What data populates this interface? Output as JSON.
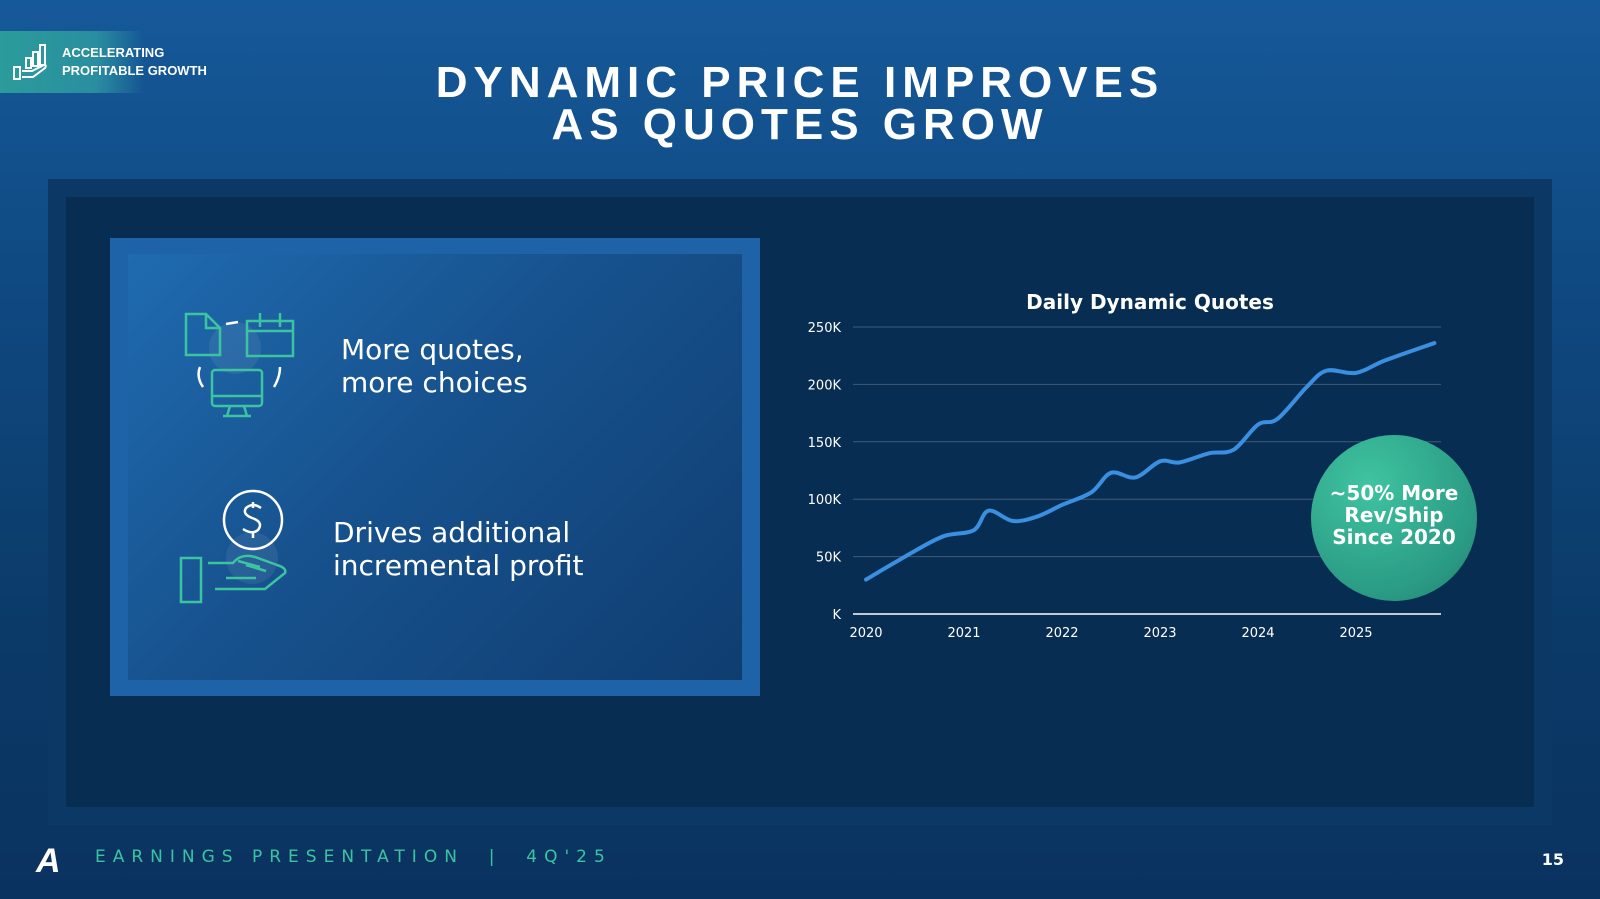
{
  "badge": {
    "line1": "ACCELERATING",
    "line2": "PROFITABLE GROWTH",
    "icon": "growth-hand-icon"
  },
  "title": {
    "line1": "DYNAMIC PRICE IMPROVES",
    "line2": "AS QUOTES GROW"
  },
  "items": [
    {
      "icon": "quotes-devices-icon",
      "line1": "More quotes,",
      "line2": "more choices"
    },
    {
      "icon": "money-hand-icon",
      "line1": "Drives additional",
      "line2": "incremental profit"
    }
  ],
  "callout": {
    "line1": "~50% More",
    "line2": "Rev/Ship",
    "line3": "Since 2020"
  },
  "footer": {
    "text": "EARNINGS PRESENTATION  |  4Q'25",
    "logo": "A",
    "page": "15"
  },
  "colors": {
    "line": "#3a8fe0",
    "accent": "#3cc4a0"
  },
  "chart_data": {
    "type": "line",
    "title": "Daily Dynamic Quotes",
    "xlabel": "",
    "ylabel": "",
    "xlim": [
      2020,
      2026
    ],
    "ylim": [
      0,
      250
    ],
    "x_ticks": [
      "2020",
      "2021",
      "2022",
      "2023",
      "2024",
      "2025"
    ],
    "y_ticks": [
      "K",
      "50K",
      "100K",
      "150K",
      "200K",
      "250K"
    ],
    "grid": true,
    "series": [
      {
        "name": "Daily Dynamic Quotes (K)",
        "x": [
          2020.0,
          2020.5,
          2020.8,
          2021.1,
          2021.25,
          2021.5,
          2021.75,
          2022.0,
          2022.3,
          2022.5,
          2022.75,
          2023.0,
          2023.2,
          2023.5,
          2023.75,
          2024.0,
          2024.2,
          2024.5,
          2024.7,
          2025.0,
          2025.3,
          2025.8
        ],
        "y": [
          30,
          55,
          68,
          73,
          90,
          81,
          85,
          95,
          106,
          123,
          119,
          133,
          132,
          140,
          143,
          165,
          170,
          198,
          212,
          210,
          221,
          236
        ]
      }
    ]
  }
}
